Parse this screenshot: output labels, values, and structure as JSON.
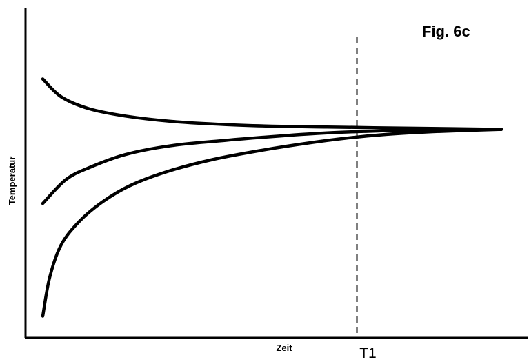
{
  "chart_data": {
    "type": "line",
    "title": "Fig. 6c",
    "xlabel": "Zeit",
    "ylabel": "Temperatur",
    "xlim": [
      0,
      100
    ],
    "ylim": [
      0,
      100
    ],
    "grid": false,
    "legend": "none",
    "marker": {
      "label": "T1",
      "x": 68.5
    },
    "series": [
      {
        "x": [
          0,
          4,
          10,
          18,
          28,
          40,
          52,
          62,
          70,
          80,
          100
        ],
        "values": [
          85,
          79,
          75,
          72.5,
          70.7,
          69.6,
          69,
          68.8,
          68.6,
          68.4,
          68
        ]
      },
      {
        "x": [
          0,
          5,
          10,
          18,
          28,
          40,
          52,
          62,
          70,
          80,
          100
        ],
        "values": [
          43,
          51,
          55,
          59.5,
          62.5,
          64.3,
          65.8,
          66.8,
          67.3,
          67.7,
          68
        ]
      },
      {
        "x": [
          0,
          1.5,
          4,
          8,
          13,
          19,
          27,
          37,
          48,
          58,
          66,
          75,
          85,
          100
        ],
        "values": [
          5,
          18,
          29,
          37,
          43.5,
          49,
          53.7,
          57.8,
          61,
          63.4,
          65,
          66.3,
          67.2,
          68
        ]
      }
    ]
  }
}
